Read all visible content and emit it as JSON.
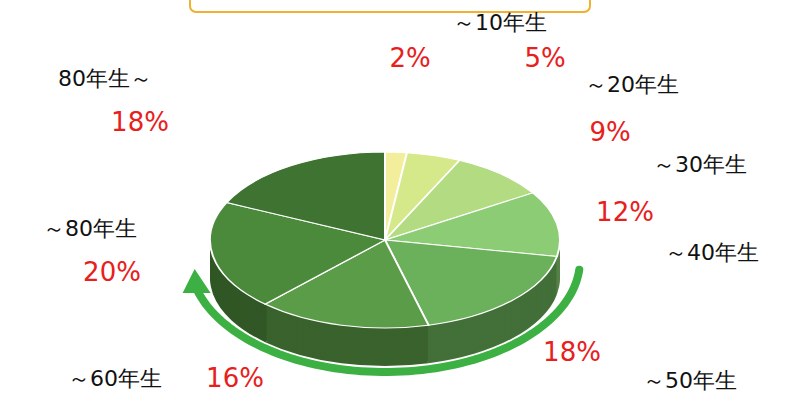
{
  "chart_data": {
    "type": "pie",
    "categories": [
      "～10年生",
      "～20年生",
      "～30年生",
      "～40年生",
      "～50年生",
      "～60年生",
      "～80年生",
      "80年生～"
    ],
    "values": [
      2,
      5,
      9,
      12,
      18,
      16,
      20,
      18
    ],
    "value_labels": [
      "2%",
      "5%",
      "9%",
      "12%",
      "18%",
      "16%",
      "20%",
      "18%"
    ],
    "colors": [
      "#f3ee9c",
      "#d6e98a",
      "#b3dc82",
      "#8ccc74",
      "#6bb05a",
      "#5b9c48",
      "#4c8a3b",
      "#3e7331"
    ],
    "data_labels": true
  }
}
